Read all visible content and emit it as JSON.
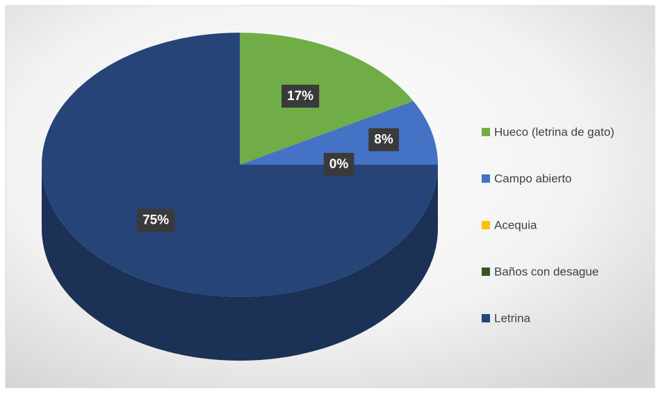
{
  "chart_data": {
    "type": "pie",
    "categories": [
      "Hueco (letrina de gato)",
      "Campo abierto",
      "Acequia",
      "Baños con desague",
      "Letrina"
    ],
    "values": [
      17,
      8,
      0,
      0,
      75
    ],
    "value_labels": [
      "17%",
      "8%",
      "0%",
      null,
      "75%"
    ],
    "colors": [
      "#70ad47",
      "#4472c4",
      "#ffc000",
      "#375623",
      "#264478"
    ],
    "legend": "right"
  }
}
